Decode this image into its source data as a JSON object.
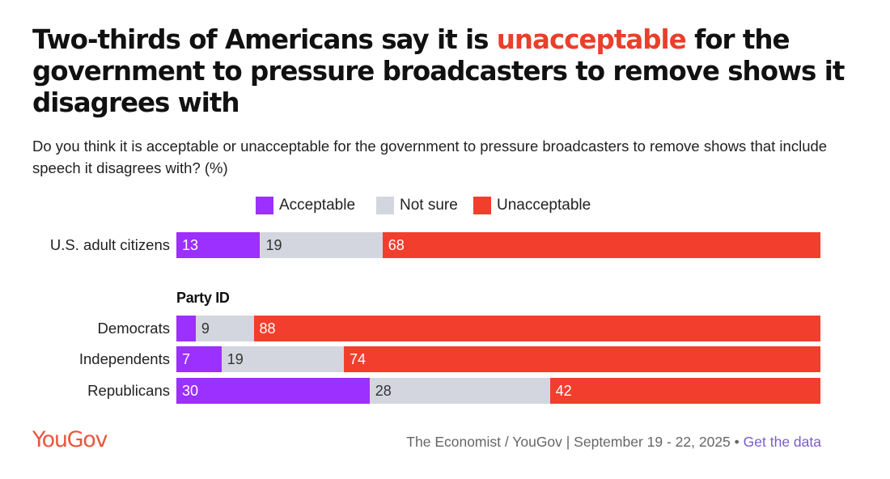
{
  "title": {
    "before": "Two-thirds of Americans say it is ",
    "highlight": "unacceptable",
    "after": " for the government to pressure broadcasters to remove shows it disagrees with"
  },
  "subtitle": "Do you think it is acceptable or unacceptable for the government to pressure broadcasters to remove shows that include speech it disagrees with? (%)",
  "colors": {
    "acceptable": "#9b30ff",
    "not_sure": "#d4d6df",
    "unacceptable": "#f23e2d",
    "highlight": "#e8402b",
    "brand": "#e8573f",
    "link": "#7a5cc8"
  },
  "chart_data": {
    "type": "bar",
    "orientation": "horizontal",
    "stacked": true,
    "unit": "%",
    "legend_position": "top",
    "series": [
      {
        "name": "Acceptable",
        "values": [
          13,
          3,
          7,
          30
        ]
      },
      {
        "name": "Not sure",
        "values": [
          19,
          9,
          19,
          28
        ]
      },
      {
        "name": "Unacceptable",
        "values": [
          68,
          88,
          74,
          42
        ]
      }
    ],
    "categories": [
      "U.S. adult citizens",
      "Democrats",
      "Independents",
      "Republicans"
    ],
    "data_labels": [
      [
        "13",
        "19",
        "68"
      ],
      [
        "",
        "9",
        "88"
      ],
      [
        "7",
        "19",
        "74"
      ],
      [
        "30",
        "28",
        "42"
      ]
    ],
    "group_header": "Party ID",
    "xlim": [
      0,
      100
    ]
  },
  "footer": {
    "logo": "YouGov",
    "source": "The Economist / YouGov | September 19 - 22, 2025",
    "bullet": "•",
    "link": "Get the data"
  }
}
